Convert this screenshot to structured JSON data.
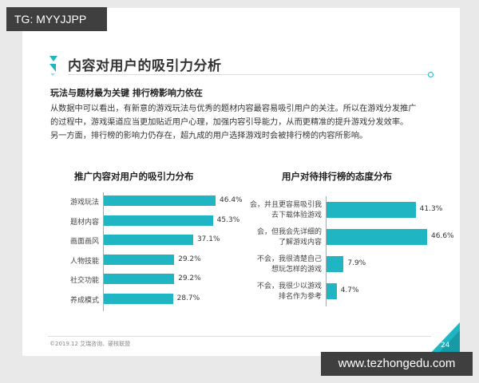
{
  "watermarks": {
    "top": "TG: MYYJJPP",
    "bottom": "www.tezhongedu.com"
  },
  "page": {
    "title": "内容对用户的吸引力分析",
    "subtitle": "玩法与题材最为关键 排行榜影响力依在",
    "body_lines": [
      "从数据中可以看出，有新意的游戏玩法与优秀的题材内容最容易吸引用户的关注。所以在游戏分发推广",
      "的过程中，游戏渠道应当更加贴近用户心理，加强内容引导能力，从而更精准的提升游戏分发效率。",
      "另一方面，排行榜的影响力仍存在，超九成的用户选择游戏时会被排行榜的内容所影响。"
    ],
    "footer": "©2019.12 艾瑞咨询、硬核联盟",
    "page_number": "24",
    "accent_color": "#1fb5c2"
  },
  "chart_data": [
    {
      "type": "bar",
      "orientation": "horizontal",
      "title": "推广内容对用户的吸引力分布",
      "categories": [
        "游戏玩法",
        "题材内容",
        "画面画风",
        "人物技能",
        "社交功能",
        "养成模式"
      ],
      "values": [
        46.4,
        45.3,
        37.1,
        29.2,
        29.2,
        28.7
      ],
      "labels": [
        "46.4%",
        "45.3%",
        "37.1%",
        "29.2%",
        "29.2%",
        "28.7%"
      ],
      "unit": "%",
      "xlabel": "",
      "ylabel": "",
      "grid": false,
      "legend": null,
      "color": "#1fb5c2"
    },
    {
      "type": "bar",
      "orientation": "horizontal",
      "title": "用户对待排行榜的态度分布",
      "categories": [
        [
          "会，并且更容易吸引我",
          "去下载体验游戏"
        ],
        [
          "会，但我会先详细的",
          "了解游戏内容"
        ],
        [
          "不会，我很清楚自己",
          "想玩怎样的游戏"
        ],
        [
          "不会，我很少以游戏",
          "排名作为参考"
        ]
      ],
      "values": [
        41.3,
        46.6,
        7.9,
        4.7
      ],
      "labels": [
        "41.3%",
        "46.6%",
        "7.9%",
        "4.7%"
      ],
      "unit": "%",
      "xlabel": "",
      "ylabel": "",
      "grid": false,
      "legend": null,
      "color": "#1fb5c2"
    }
  ]
}
